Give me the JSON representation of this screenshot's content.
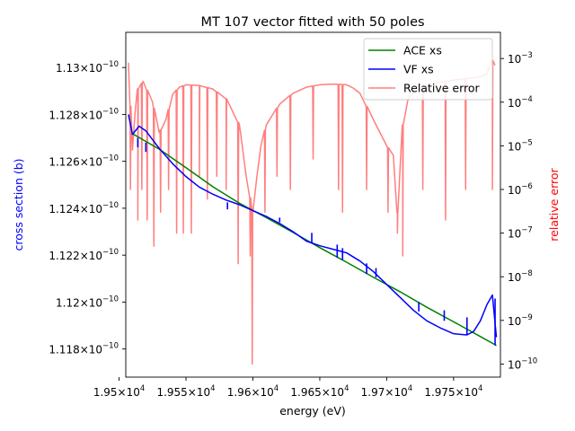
{
  "chart_data": {
    "type": "line",
    "title": "MT 107 vector fitted with 50 poles",
    "xlabel": "energy (eV)",
    "ylabel": "cross section (b)",
    "ylabel_right": "relative error",
    "colors": {
      "ylabel": "#0000ff",
      "ylabel_right": "#ff0000",
      "right_ticks": "#ff0000",
      "ace": "#008000",
      "vf": "#0000ff",
      "error": "#ff7f7f"
    },
    "xlim": [
      19505,
      19785
    ],
    "x_ticks": [
      {
        "value": 19500,
        "mant": "1.95",
        "exp": "4"
      },
      {
        "value": 19550,
        "mant": "1.955",
        "exp": "4"
      },
      {
        "value": 19600,
        "mant": "1.96",
        "exp": "4"
      },
      {
        "value": 19650,
        "mant": "1.965",
        "exp": "4"
      },
      {
        "value": 19700,
        "mant": "1.97",
        "exp": "4"
      },
      {
        "value": 19750,
        "mant": "1.975",
        "exp": "4"
      }
    ],
    "ylim": [
      1.1168e-10,
      1.1315e-10
    ],
    "y_ticks": [
      {
        "value": 1.13e-10,
        "mant": "1.13",
        "exp": "−10"
      },
      {
        "value": 1.128e-10,
        "mant": "1.128",
        "exp": "−10"
      },
      {
        "value": 1.126e-10,
        "mant": "1.126",
        "exp": "−10"
      },
      {
        "value": 1.124e-10,
        "mant": "1.124",
        "exp": "−10"
      },
      {
        "value": 1.122e-10,
        "mant": "1.122",
        "exp": "−10"
      },
      {
        "value": 1.12e-10,
        "mant": "1.12",
        "exp": "−10"
      },
      {
        "value": 1.118e-10,
        "mant": "1.118",
        "exp": "−10"
      }
    ],
    "y2lim_log10": [
      -10.3,
      -2.4
    ],
    "y2_ticks": [
      {
        "value": 0.001,
        "mant": "10",
        "exp": "−3"
      },
      {
        "value": 0.0001,
        "mant": "10",
        "exp": "−4"
      },
      {
        "value": 1e-05,
        "mant": "10",
        "exp": "−5"
      },
      {
        "value": 1e-06,
        "mant": "10",
        "exp": "−6"
      },
      {
        "value": 1e-07,
        "mant": "10",
        "exp": "−7"
      },
      {
        "value": 1e-08,
        "mant": "10",
        "exp": "−8"
      },
      {
        "value": 1e-09,
        "mant": "10",
        "exp": "−9"
      },
      {
        "value": 1e-10,
        "mant": "10",
        "exp": "−10"
      }
    ],
    "legend_placement": "top-right",
    "grid": false,
    "series": [
      {
        "name": "ACE xs",
        "axis": "left",
        "x": [
          19510,
          19530,
          19550,
          19570,
          19590,
          19610,
          19630,
          19650,
          19670,
          19690,
          19710,
          19730,
          19750,
          19770,
          19782
        ],
        "values": [
          1.12718e-10,
          1.12652e-10,
          1.12573e-10,
          1.12492e-10,
          1.12421e-10,
          1.1236e-10,
          1.12297e-10,
          1.12232e-10,
          1.1217e-10,
          1.12106e-10,
          1.12044e-10,
          1.11978e-10,
          1.11916e-10,
          1.11853e-10,
          1.11815e-10
        ]
      },
      {
        "name": "VF xs",
        "axis": "left",
        "x": [
          19507,
          19510,
          19515,
          19520,
          19530,
          19540,
          19550,
          19560,
          19570,
          19580,
          19590,
          19600,
          19610,
          19620,
          19630,
          19640,
          19650,
          19660,
          19670,
          19680,
          19690,
          19700,
          19710,
          19720,
          19730,
          19740,
          19750,
          19760,
          19765,
          19770,
          19775,
          19779,
          19782
        ],
        "values": [
          1.128e-10,
          1.12715e-10,
          1.1275e-10,
          1.1273e-10,
          1.12655e-10,
          1.1259e-10,
          1.12535e-10,
          1.1249e-10,
          1.1246e-10,
          1.12435e-10,
          1.12415e-10,
          1.1239e-10,
          1.12365e-10,
          1.12335e-10,
          1.123e-10,
          1.1226e-10,
          1.1224e-10,
          1.12225e-10,
          1.1221e-10,
          1.12175e-10,
          1.1213e-10,
          1.12075e-10,
          1.1202e-10,
          1.11965e-10,
          1.1192e-10,
          1.1189e-10,
          1.11865e-10,
          1.1186e-10,
          1.11875e-10,
          1.1192e-10,
          1.1199e-10,
          1.1203e-10,
          1.1185e-10
        ]
      },
      {
        "name": "Relative error",
        "axis": "right",
        "x": [
          19507,
          19510,
          19512,
          19514,
          19518,
          19525,
          19530,
          19535,
          19540,
          19545,
          19550,
          19560,
          19570,
          19580,
          19590,
          19595,
          19600,
          19603,
          19606,
          19610,
          19620,
          19630,
          19640,
          19650,
          19660,
          19670,
          19675,
          19680,
          19690,
          19700,
          19705,
          19708,
          19712,
          19716,
          19720,
          19730,
          19740,
          19750,
          19760,
          19770,
          19775,
          19779,
          19781
        ],
        "values": [
          0.0008,
          8e-06,
          6e-05,
          0.0002,
          0.0003,
          0.0001,
          2e-05,
          4e-05,
          0.00015,
          0.00022,
          0.00025,
          0.00024,
          0.0002,
          0.00012,
          3e-05,
          2e-06,
          3e-07,
          2e-06,
          1e-05,
          3e-05,
          9e-05,
          0.00016,
          0.00022,
          0.00025,
          0.00026,
          0.00025,
          0.00021,
          0.00016,
          4e-05,
          1e-05,
          6e-06,
          3e-07,
          3e-05,
          0.00012,
          0.00017,
          0.00024,
          0.00029,
          0.00032,
          0.00035,
          0.00038,
          0.00045,
          0.0009,
          0.0007
        ],
        "dips": [
          {
            "x": 19508.5,
            "value": 1e-06
          },
          {
            "x": 19514,
            "value": 2e-07
          },
          {
            "x": 19517,
            "value": 1e-06
          },
          {
            "x": 19521,
            "value": 2e-07
          },
          {
            "x": 19526,
            "value": 5e-08
          },
          {
            "x": 19531,
            "value": 3e-07
          },
          {
            "x": 19537,
            "value": 1e-06
          },
          {
            "x": 19543,
            "value": 1e-07
          },
          {
            "x": 19548,
            "value": 1e-07
          },
          {
            "x": 19554,
            "value": 1e-07
          },
          {
            "x": 19560,
            "value": 2e-06
          },
          {
            "x": 19566,
            "value": 6e-07
          },
          {
            "x": 19573,
            "value": 2e-06
          },
          {
            "x": 19580,
            "value": 1e-06
          },
          {
            "x": 19589,
            "value": 2e-08
          },
          {
            "x": 19598,
            "value": 3e-08
          },
          {
            "x": 19599.5,
            "value": 1e-10
          },
          {
            "x": 19609,
            "value": 3e-07
          },
          {
            "x": 19618,
            "value": 2e-06
          },
          {
            "x": 19628,
            "value": 1e-06
          },
          {
            "x": 19645,
            "value": 5e-06
          },
          {
            "x": 19664,
            "value": 1e-06
          },
          {
            "x": 19667,
            "value": 3e-07
          },
          {
            "x": 19685,
            "value": 1e-06
          },
          {
            "x": 19701,
            "value": 3e-07
          },
          {
            "x": 19708,
            "value": 1e-07
          },
          {
            "x": 19712,
            "value": 3e-08
          },
          {
            "x": 19727,
            "value": 1e-06
          },
          {
            "x": 19744,
            "value": 2e-07
          },
          {
            "x": 19759,
            "value": 1e-06
          },
          {
            "x": 19779,
            "value": 1e-06
          }
        ]
      }
    ],
    "vf_glitches": [
      {
        "x": 19514,
        "values": [
          1.1266e-10,
          1.127e-10
        ]
      },
      {
        "x": 19520,
        "values": [
          1.1264e-10,
          1.1268e-10
        ]
      },
      {
        "x": 19581,
        "values": [
          1.12395e-10,
          1.12425e-10
        ]
      },
      {
        "x": 19620,
        "values": [
          1.1234e-10,
          1.1236e-10
        ]
      },
      {
        "x": 19644,
        "values": [
          1.1225e-10,
          1.12295e-10
        ]
      },
      {
        "x": 19663,
        "values": [
          1.1219e-10,
          1.12245e-10
        ]
      },
      {
        "x": 19667,
        "values": [
          1.1218e-10,
          1.1223e-10
        ]
      },
      {
        "x": 19685,
        "values": [
          1.1212e-10,
          1.12165e-10
        ]
      },
      {
        "x": 19692,
        "values": [
          1.12105e-10,
          1.12145e-10
        ]
      },
      {
        "x": 19724,
        "values": [
          1.1196e-10,
          1.12e-10
        ]
      },
      {
        "x": 19743,
        "values": [
          1.1192e-10,
          1.11965e-10
        ]
      },
      {
        "x": 19760,
        "values": [
          1.1186e-10,
          1.11935e-10
        ]
      },
      {
        "x": 19781,
        "values": [
          1.11815e-10,
          1.12015e-10
        ]
      }
    ]
  }
}
